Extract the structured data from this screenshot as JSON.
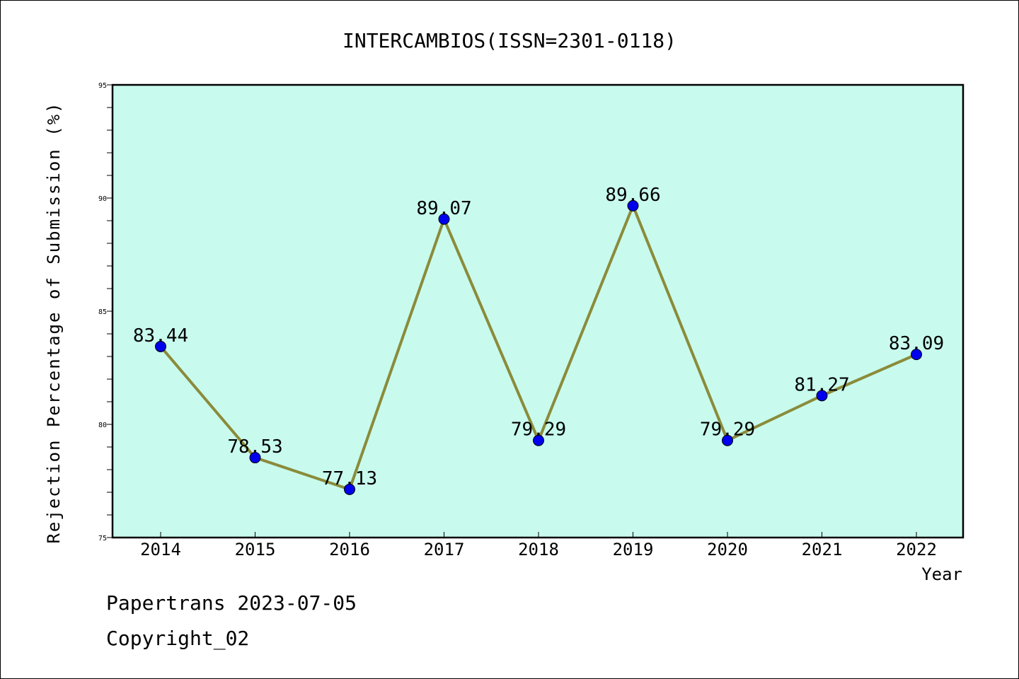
{
  "chart_data": {
    "type": "line",
    "title": "INTERCAMBIOS(ISSN=2301-0118)",
    "xlabel": "Year",
    "ylabel": "Rejection Percentage of Submission (%)",
    "categories": [
      "2014",
      "2015",
      "2016",
      "2017",
      "2018",
      "2019",
      "2020",
      "2021",
      "2022"
    ],
    "values": [
      83.44,
      78.53,
      77.13,
      89.07,
      79.29,
      89.66,
      79.29,
      81.27,
      83.09
    ],
    "data_labels": [
      "83.44",
      "78.53",
      "77.13",
      "89.07",
      "79.29",
      "89.66",
      "79.29",
      "81.27",
      "83.09"
    ],
    "ylim": [
      75,
      95
    ],
    "y_ticks": [
      "75",
      "80",
      "85",
      "90",
      "95"
    ],
    "grid": false,
    "colors": {
      "plot_background": "#c8fbee",
      "line": "#8b8b3a",
      "marker": "#0000ee"
    }
  },
  "footer": {
    "line1": "Papertrans 2023-07-05",
    "line2": "Copyright_02"
  }
}
